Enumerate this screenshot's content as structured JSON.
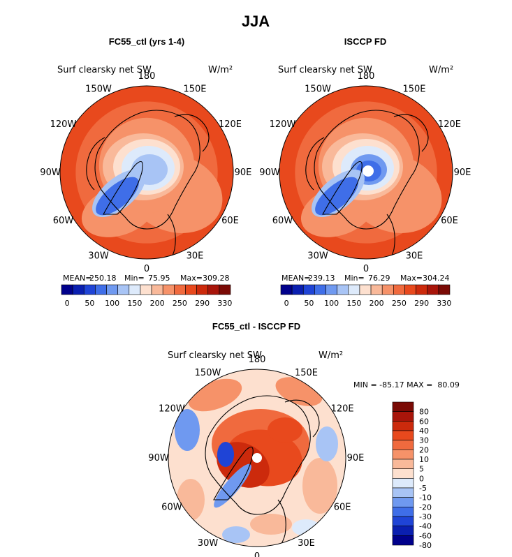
{
  "figure": {
    "title": "JJA"
  },
  "colors": {
    "abs_scale": [
      "#00008b",
      "#0a1fb0",
      "#1f44d6",
      "#3f6ee8",
      "#6f99f0",
      "#a8c4f5",
      "#ddeafb",
      "#fde0cf",
      "#f9b99a",
      "#f69269",
      "#f06a3e",
      "#e8491d",
      "#cc2a0c",
      "#a8150a",
      "#7a0a05"
    ],
    "diff_scale": [
      "#00008b",
      "#0a1fb0",
      "#1f44d6",
      "#3f6ee8",
      "#6f99f0",
      "#a8c4f5",
      "#ddeafb",
      "#fde0cf",
      "#f9b99a",
      "#f69269",
      "#f06a3e",
      "#e8491d",
      "#cc2a0c",
      "#a8150a",
      "#7a0a05"
    ],
    "pole_dot": "#ffffff",
    "coast": "#000000"
  },
  "chart_data": [
    {
      "type": "heatmap",
      "projection": "north-polar-stereographic",
      "title": "FC55_ctl (yrs 1-4)",
      "variable": "Surf clearsky net SW",
      "units": "W/m²",
      "lon_labels": [
        "180",
        "150E",
        "120E",
        "90E",
        "60E",
        "30E",
        "0",
        "30W",
        "60W",
        "90W",
        "120W",
        "150W"
      ],
      "stats": {
        "mean_label": "MEAN=",
        "mean": "250.18",
        "min_label": "Min=",
        "min": "75.95",
        "max_label": "Max=",
        "max": "309.28"
      },
      "colorbar_ticks": [
        "0",
        "50",
        "100",
        "150",
        "200",
        "250",
        "290",
        "330"
      ],
      "colorbar_range": [
        0,
        330
      ]
    },
    {
      "type": "heatmap",
      "projection": "north-polar-stereographic",
      "title": "ISCCP FD",
      "variable": "Surf clearsky net SW",
      "units": "W/m²",
      "lon_labels": [
        "180",
        "150E",
        "120E",
        "90E",
        "60E",
        "30E",
        "0",
        "30W",
        "60W",
        "90W",
        "120W",
        "150W"
      ],
      "stats": {
        "mean_label": "MEAN=",
        "mean": "239.13",
        "min_label": "Min=",
        "min": "76.29",
        "max_label": "Max=",
        "max": "304.24"
      },
      "colorbar_ticks": [
        "0",
        "50",
        "100",
        "150",
        "200",
        "250",
        "290",
        "330"
      ],
      "colorbar_range": [
        0,
        330
      ]
    },
    {
      "type": "heatmap",
      "projection": "north-polar-stereographic",
      "title": "FC55_ctl - ISCCP FD",
      "variable": "Surf clearsky net SW",
      "units": "W/m²",
      "lon_labels": [
        "180",
        "150E",
        "120E",
        "90E",
        "60E",
        "30E",
        "0",
        "30W",
        "60W",
        "90W",
        "120W",
        "150W"
      ],
      "stats_text": "MIN = -85.17 MAX =  80.09",
      "colorbar_levels": [
        "80",
        "60",
        "40",
        "30",
        "20",
        "10",
        "5",
        "0",
        "-5",
        "-10",
        "-20",
        "-30",
        "-40",
        "-60",
        "-80"
      ],
      "colorbar_orientation": "vertical"
    }
  ]
}
